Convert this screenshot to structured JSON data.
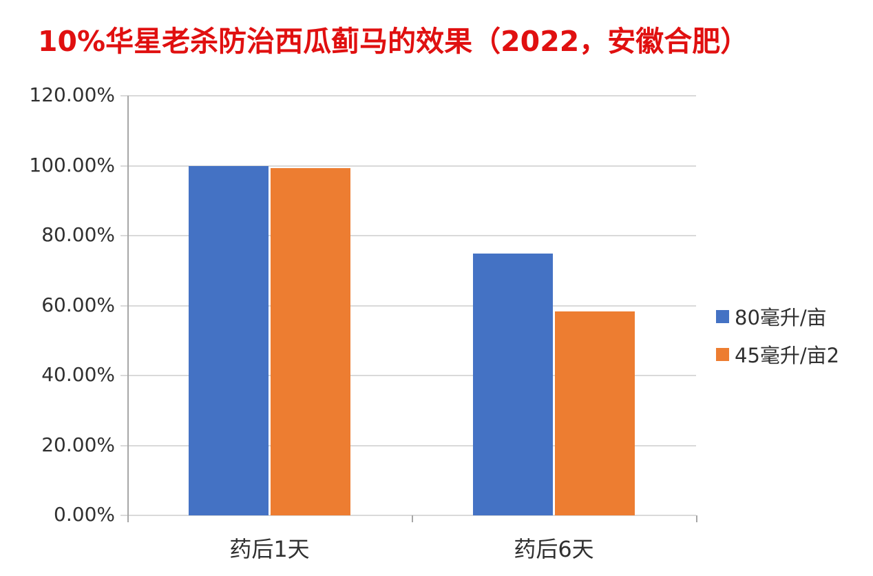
{
  "chart_data": {
    "type": "bar",
    "title": "10%华星老杀防治西瓜蓟马的效果（2022，安徽合肥）",
    "categories": [
      "药后1天",
      "药后6天"
    ],
    "series": [
      {
        "name": "80毫升/亩",
        "color": "#4472c4",
        "values": [
          100.0,
          74.8
        ]
      },
      {
        "name": "45毫升/亩2",
        "color": "#ed7d31",
        "values": [
          99.3,
          58.4
        ]
      }
    ],
    "xlabel": "",
    "ylabel": "",
    "ylim": [
      0,
      120
    ],
    "y_tick_step": 20,
    "y_tick_labels": [
      "0.00%",
      "20.00%",
      "40.00%",
      "60.00%",
      "80.00%",
      "100.00%",
      "120.00%"
    ],
    "grid": true,
    "legend_position": "right"
  },
  "colors": {
    "title": "#e01010",
    "gridline": "#d9d9d9",
    "axis": "#a6a6a6",
    "tick_label": "#303030",
    "background": "#ffffff"
  }
}
